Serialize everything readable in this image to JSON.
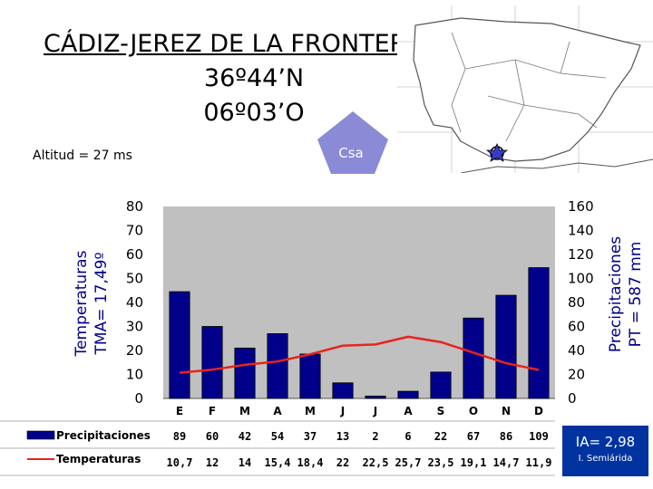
{
  "title": {
    "line1": "CÁDIZ-JEREZ DE LA FRONTERA (a)",
    "line2": "36º44’N",
    "line3": "06º03’O"
  },
  "altitude": "Altitud = 27 ms",
  "climate_badge": "Csa",
  "aridity": {
    "value": "IA= 2,98",
    "class": "I. Semiárida"
  },
  "colors": {
    "bars": "#00008b",
    "line": "#e8231e",
    "plot_bg": "#c0c0c0",
    "ia_box": "#0033a0",
    "badge": "#8a8ad6"
  },
  "chart_data": {
    "type": "bar+line",
    "categories": [
      "E",
      "F",
      "M",
      "A",
      "M",
      "J",
      "J",
      "A",
      "S",
      "O",
      "N",
      "D"
    ],
    "left_axis": {
      "label_line1": "Temperaturas",
      "label_line2": "TMA= 17,49º",
      "ylim": [
        0,
        80
      ],
      "ticks": [
        0,
        10,
        20,
        30,
        40,
        50,
        60,
        70,
        80
      ]
    },
    "right_axis": {
      "label_line1": "Precipitaciones",
      "label_line2": "PT = 587 mm",
      "ylim": [
        0,
        160
      ],
      "ticks": [
        0,
        20,
        40,
        60,
        80,
        100,
        120,
        140,
        160
      ]
    },
    "series": [
      {
        "name": "Precipitaciones",
        "axis": "right",
        "kind": "bar",
        "values": [
          89,
          60,
          42,
          54,
          37,
          13,
          2,
          6,
          22,
          67,
          86,
          109
        ],
        "labels": [
          "89",
          "60",
          "42",
          "54",
          "37",
          "13",
          "2",
          "6",
          "22",
          "67",
          "86",
          "109"
        ]
      },
      {
        "name": "Temperaturas",
        "axis": "left",
        "kind": "line",
        "values": [
          10.7,
          12,
          14,
          15.4,
          18.4,
          22,
          22.5,
          25.7,
          23.5,
          19.1,
          14.7,
          11.9
        ],
        "labels": [
          "10,7",
          "12",
          "14",
          "15,4",
          "18,4",
          "22",
          "22,5",
          "25,7",
          "23,5",
          "19,1",
          "14,7",
          "11,9"
        ]
      }
    ],
    "grid": false,
    "legend": "bottom-left table"
  }
}
